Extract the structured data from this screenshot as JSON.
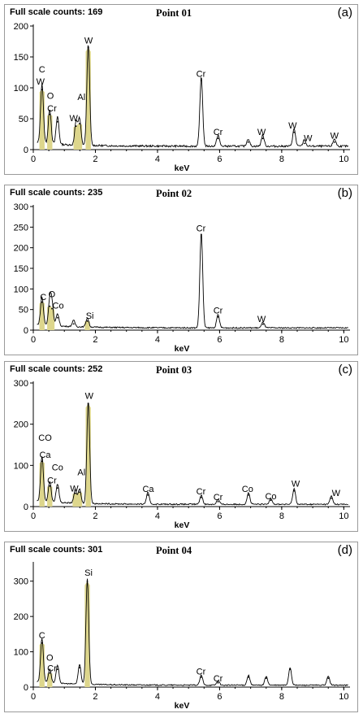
{
  "panels": [
    {
      "counts_label": "Full scale counts: 169",
      "point_label": "Point 01",
      "panel_label": "(a)"
    },
    {
      "counts_label": "Full scale counts: 235",
      "point_label": "Point 02",
      "panel_label": "(b)"
    },
    {
      "counts_label": "Full scale counts: 252",
      "point_label": "Point 03",
      "panel_label": "(c)"
    },
    {
      "counts_label": "Full scale counts: 301",
      "point_label": "Point 04",
      "panel_label": "(d)"
    }
  ],
  "colors": {
    "spectrum": "#000000",
    "peak_fill": "#ddd68c",
    "frame": "#9a9a9a"
  },
  "chart_data": [
    {
      "type": "line",
      "title": "Point 01",
      "xlabel": "keV",
      "ylabel": "",
      "xlim": [
        0,
        10.2
      ],
      "ylim": [
        0,
        200
      ],
      "xticks": [
        0,
        2,
        4,
        6,
        8,
        10
      ],
      "yticks": [
        0,
        50,
        100,
        150,
        200
      ],
      "peaks": [
        {
          "x": 0.28,
          "y": 97,
          "fill": true
        },
        {
          "x": 0.53,
          "y": 57,
          "fill": true
        },
        {
          "x": 0.78,
          "y": 45,
          "fill": false
        },
        {
          "x": 1.38,
          "y": 38,
          "fill": true
        },
        {
          "x": 1.49,
          "y": 42,
          "fill": true
        },
        {
          "x": 1.77,
          "y": 165,
          "fill": true
        },
        {
          "x": 5.41,
          "y": 112,
          "fill": false
        },
        {
          "x": 5.95,
          "y": 18,
          "fill": false
        },
        {
          "x": 6.92,
          "y": 12,
          "fill": false
        },
        {
          "x": 7.39,
          "y": 18,
          "fill": false
        },
        {
          "x": 8.4,
          "y": 28,
          "fill": false
        },
        {
          "x": 8.73,
          "y": 10,
          "fill": false
        },
        {
          "x": 9.7,
          "y": 12,
          "fill": false
        }
      ],
      "annotations": [
        {
          "text": "C",
          "x": 0.28,
          "y": 125
        },
        {
          "text": "W",
          "x": 0.23,
          "y": 105
        },
        {
          "text": "O",
          "x": 0.55,
          "y": 82
        },
        {
          "text": "Cr",
          "x": 0.6,
          "y": 62
        },
        {
          "text": "W",
          "x": 1.3,
          "y": 46
        },
        {
          "text": "Al",
          "x": 1.55,
          "y": 80
        },
        {
          "text": "W",
          "x": 1.78,
          "y": 172
        },
        {
          "text": "Cr",
          "x": 5.4,
          "y": 118
        },
        {
          "text": "Cr",
          "x": 5.95,
          "y": 24
        },
        {
          "text": "W",
          "x": 7.35,
          "y": 24
        },
        {
          "text": "W",
          "x": 8.35,
          "y": 34
        },
        {
          "text": "W",
          "x": 8.85,
          "y": 14
        },
        {
          "text": "W",
          "x": 9.7,
          "y": 18
        }
      ]
    },
    {
      "type": "line",
      "title": "Point 02",
      "xlabel": "keV",
      "ylabel": "",
      "xlim": [
        0,
        10.2
      ],
      "ylim": [
        0,
        300
      ],
      "xticks": [
        0,
        2,
        4,
        6,
        8,
        10
      ],
      "yticks": [
        0,
        50,
        100,
        150,
        200,
        250,
        300
      ],
      "peaks": [
        {
          "x": 0.28,
          "y": 68,
          "fill": true
        },
        {
          "x": 0.53,
          "y": 58,
          "fill": true
        },
        {
          "x": 0.6,
          "y": 52,
          "fill": true
        },
        {
          "x": 0.78,
          "y": 30,
          "fill": false
        },
        {
          "x": 1.3,
          "y": 15,
          "fill": false
        },
        {
          "x": 1.74,
          "y": 22,
          "fill": true
        },
        {
          "x": 5.41,
          "y": 232,
          "fill": false
        },
        {
          "x": 5.95,
          "y": 32,
          "fill": false
        },
        {
          "x": 7.4,
          "y": 14,
          "fill": false
        }
      ],
      "annotations": [
        {
          "text": "C",
          "x": 0.32,
          "y": 73
        },
        {
          "text": "O",
          "x": 0.6,
          "y": 80
        },
        {
          "text": "Co",
          "x": 0.8,
          "y": 52
        },
        {
          "text": "Si",
          "x": 1.82,
          "y": 28
        },
        {
          "text": "Cr",
          "x": 5.4,
          "y": 240
        },
        {
          "text": "Cr",
          "x": 5.95,
          "y": 40
        },
        {
          "text": "W",
          "x": 7.35,
          "y": 20
        }
      ]
    },
    {
      "type": "line",
      "title": "Point 03",
      "xlabel": "keV",
      "ylabel": "",
      "xlim": [
        0,
        10.2
      ],
      "ylim": [
        0,
        300
      ],
      "xticks": [
        0,
        2,
        4,
        6,
        8,
        10
      ],
      "yticks": [
        0,
        100,
        200,
        300
      ],
      "peaks": [
        {
          "x": 0.28,
          "y": 110,
          "fill": true
        },
        {
          "x": 0.53,
          "y": 50,
          "fill": true
        },
        {
          "x": 0.78,
          "y": 45,
          "fill": false
        },
        {
          "x": 1.35,
          "y": 32,
          "fill": true
        },
        {
          "x": 1.49,
          "y": 35,
          "fill": true
        },
        {
          "x": 1.77,
          "y": 250,
          "fill": true
        },
        {
          "x": 3.69,
          "y": 28,
          "fill": false
        },
        {
          "x": 5.41,
          "y": 22,
          "fill": false
        },
        {
          "x": 5.95,
          "y": 12,
          "fill": false
        },
        {
          "x": 6.93,
          "y": 28,
          "fill": false
        },
        {
          "x": 7.65,
          "y": 15,
          "fill": false
        },
        {
          "x": 8.4,
          "y": 38,
          "fill": false
        },
        {
          "x": 9.6,
          "y": 20,
          "fill": false
        }
      ],
      "annotations": [
        {
          "text": "CO",
          "x": 0.38,
          "y": 160
        },
        {
          "text": "Ca",
          "x": 0.38,
          "y": 118
        },
        {
          "text": "Co",
          "x": 0.78,
          "y": 88
        },
        {
          "text": "Cr",
          "x": 0.6,
          "y": 56
        },
        {
          "text": "W",
          "x": 1.32,
          "y": 37
        },
        {
          "text": "Al",
          "x": 1.55,
          "y": 76
        },
        {
          "text": "W",
          "x": 1.8,
          "y": 262
        },
        {
          "text": "Ca",
          "x": 3.7,
          "y": 36
        },
        {
          "text": "Cr",
          "x": 5.4,
          "y": 30
        },
        {
          "text": "Cr",
          "x": 5.95,
          "y": 16
        },
        {
          "text": "Co",
          "x": 6.9,
          "y": 36
        },
        {
          "text": "Co",
          "x": 7.65,
          "y": 18
        },
        {
          "text": "W",
          "x": 8.45,
          "y": 48
        },
        {
          "text": "W",
          "x": 9.75,
          "y": 26
        }
      ]
    },
    {
      "type": "line",
      "title": "Point 04",
      "xlabel": "keV",
      "ylabel": "",
      "xlim": [
        0,
        10.2
      ],
      "ylim": [
        0,
        350
      ],
      "xticks": [
        0,
        2,
        4,
        6,
        8,
        10
      ],
      "yticks": [
        0,
        100,
        200,
        300
      ],
      "peaks": [
        {
          "x": 0.28,
          "y": 125,
          "fill": true
        },
        {
          "x": 0.53,
          "y": 40,
          "fill": true
        },
        {
          "x": 0.78,
          "y": 50,
          "fill": false
        },
        {
          "x": 1.49,
          "y": 55,
          "fill": false
        },
        {
          "x": 1.74,
          "y": 300,
          "fill": true
        },
        {
          "x": 5.41,
          "y": 28,
          "fill": false
        },
        {
          "x": 5.95,
          "y": 12,
          "fill": false
        },
        {
          "x": 6.93,
          "y": 28,
          "fill": false
        },
        {
          "x": 7.5,
          "y": 25,
          "fill": false
        },
        {
          "x": 8.27,
          "y": 50,
          "fill": false
        },
        {
          "x": 9.5,
          "y": 25,
          "fill": false
        }
      ],
      "annotations": [
        {
          "text": "C",
          "x": 0.28,
          "y": 138
        },
        {
          "text": "O",
          "x": 0.53,
          "y": 75
        },
        {
          "text": "Cr",
          "x": 0.6,
          "y": 45
        },
        {
          "text": "Si",
          "x": 1.78,
          "y": 315
        },
        {
          "text": "Cr",
          "x": 5.4,
          "y": 36
        },
        {
          "text": "Cr",
          "x": 5.95,
          "y": 16
        }
      ]
    }
  ]
}
